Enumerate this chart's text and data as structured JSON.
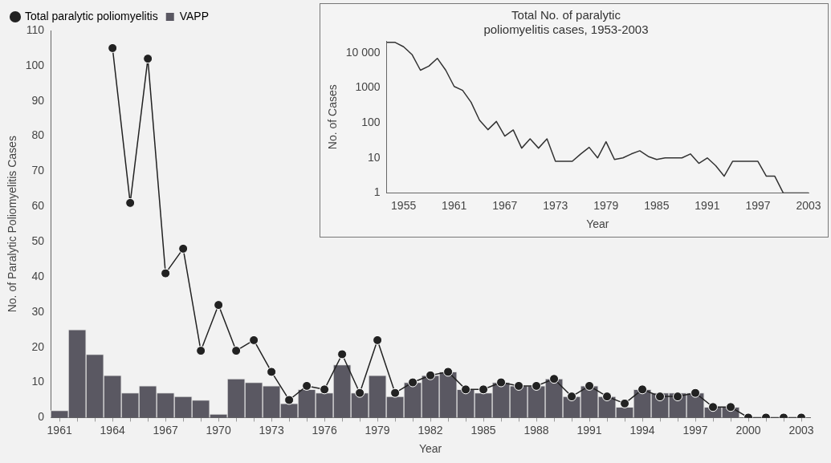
{
  "chart_data": [
    {
      "type": "bar",
      "xlabel": "Year",
      "ylabel": "No. of Paralytic Poliomyelitis Cases",
      "categories": [
        "1961",
        null,
        null,
        "1964",
        null,
        null,
        "1967",
        null,
        null,
        "1970",
        null,
        null,
        "1973",
        null,
        null,
        "1976",
        null,
        null,
        "1979",
        null,
        null,
        "1982",
        null,
        null,
        "1985",
        null,
        null,
        "1988",
        null,
        null,
        "1991",
        null,
        null,
        "1994",
        null,
        null,
        "1997",
        null,
        null,
        "2000",
        null,
        null,
        "2003"
      ],
      "series": [
        {
          "name": "Total paralytic poliomyelitis",
          "type": "line",
          "color": "#222222",
          "values": [
            null,
            null,
            null,
            105,
            61,
            102,
            41,
            48,
            19,
            32,
            19,
            22,
            13,
            5,
            9,
            8,
            18,
            7,
            22,
            7,
            10,
            12,
            13,
            8,
            8,
            10,
            9,
            9,
            11,
            6,
            9,
            6,
            4,
            8,
            6,
            6,
            7,
            3,
            3,
            0,
            0,
            0,
            0
          ]
        },
        {
          "name": "VAPP",
          "type": "bar",
          "color": "#5a5862",
          "values": [
            2,
            25,
            18,
            12,
            7,
            9,
            7,
            6,
            5,
            1,
            11,
            10,
            9,
            4,
            8,
            7,
            15,
            7,
            12,
            6,
            10,
            12,
            13,
            8,
            7,
            10,
            9,
            9,
            11,
            6,
            9,
            6,
            3,
            8,
            7,
            7,
            7,
            3,
            3,
            0,
            0,
            0,
            0
          ]
        }
      ],
      "ylim": [
        0,
        110
      ],
      "yticks": [
        0,
        10,
        20,
        30,
        40,
        50,
        60,
        70,
        80,
        90,
        100,
        110
      ],
      "grid": false,
      "legend": "top left",
      "marker": "circle",
      "line_style": "solid"
    },
    {
      "type": "line",
      "title": "Total No. of paralytic\npoliomyelitis cases, 1953-2003",
      "xlabel": "Year",
      "ylabel": "No. of Cases",
      "x": [
        1953,
        1954,
        1955,
        1956,
        1957,
        1958,
        1959,
        1960,
        1961,
        1962,
        1963,
        1964,
        1965,
        1966,
        1967,
        1968,
        1969,
        1970,
        1971,
        1972,
        1973,
        1974,
        1975,
        1976,
        1977,
        1978,
        1979,
        1980,
        1981,
        1982,
        1983,
        1984,
        1985,
        1986,
        1987,
        1988,
        1989,
        1990,
        1991,
        1992,
        1993,
        1994,
        1995,
        1996,
        1997,
        1998,
        1999,
        2000,
        2001,
        2002,
        2003
      ],
      "series": [
        {
          "color": "#333333",
          "values": [
            20000,
            20000,
            15000,
            9000,
            3200,
            4200,
            7000,
            3200,
            1100,
            850,
            390,
            120,
            64,
            110,
            42,
            63,
            19,
            35,
            19,
            35,
            8,
            8,
            8,
            13,
            20,
            10,
            29,
            9,
            10,
            13,
            16,
            11,
            9,
            10,
            10,
            10,
            13,
            7,
            10,
            6,
            3,
            8,
            8,
            8,
            8,
            3,
            3,
            1,
            1,
            1,
            1
          ]
        }
      ],
      "xlim": [
        1953,
        2003
      ],
      "xticks": [
        1955,
        1961,
        1967,
        1973,
        1979,
        1985,
        1991,
        1997,
        2003
      ],
      "ylim": [
        1,
        22000
      ],
      "yticks": [
        1,
        10,
        100,
        1000,
        {
          "value": 10000,
          "label": "10 000"
        }
      ],
      "log": true,
      "grid": false,
      "legend": false,
      "marker": "none",
      "line_style": "solid"
    }
  ]
}
